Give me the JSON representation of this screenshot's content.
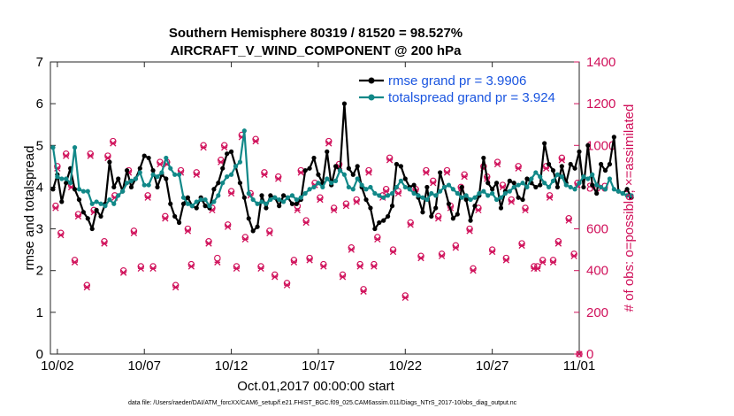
{
  "chart_data": {
    "type": "line",
    "title": "Southern Hemisphere 80319 / 81520 = 98.527%",
    "subtitle": "AIRCRAFT_V_WIND_COMPONENT @ 200 hPa",
    "xlabel": "Oct.01,2017 00:00:00 start",
    "ylabel": "rmse and totalspread",
    "ylabel_right": "# of obs: o=possible; ×=assimilated",
    "ylim": [
      0,
      7
    ],
    "ylim_right": [
      0,
      1400
    ],
    "xlim": [
      0.6,
      31.0
    ],
    "x_ticks": [
      1,
      6,
      11,
      16,
      21,
      26,
      31
    ],
    "x_tick_labels": [
      "10/02",
      "10/07",
      "10/12",
      "10/17",
      "10/22",
      "10/27",
      "11/01"
    ],
    "y_ticks": [
      0,
      1,
      2,
      3,
      4,
      5,
      6,
      7
    ],
    "y_ticks_right": [
      0,
      200,
      400,
      600,
      800,
      1000,
      1200,
      1400
    ],
    "footnote": "data file: /Users/raeder/DAI/ATM_forcXX/CAM6_setup/f.e21.FHIST_BGC.f09_025.CAM6assim.011/Diags_NTrS_2017-10/obs_diag_output.nc",
    "legend": [
      {
        "label": "rmse grand pr = 3.9906",
        "color": "#000000",
        "marker": "dot"
      },
      {
        "label": "totalspread grand pr = 3.924",
        "color": "#118888",
        "marker": "dot"
      }
    ],
    "colors": {
      "rmse": "#000000",
      "spread": "#118888",
      "obs": "#d0105a"
    },
    "series": [
      {
        "name": "rmse",
        "color": "#000000",
        "step": 0.25,
        "x0": 0.75,
        "values": [
          3.95,
          4.3,
          3.65,
          4.1,
          4.45,
          3.95,
          3.7,
          3.4,
          3.25,
          3.0,
          3.45,
          3.3,
          3.6,
          4.6,
          4.0,
          4.2,
          3.9,
          4.4,
          4.0,
          4.2,
          4.45,
          4.75,
          4.7,
          4.4,
          4.0,
          4.3,
          4.2,
          3.6,
          3.3,
          3.15,
          3.6,
          3.75,
          3.55,
          3.5,
          3.75,
          3.55,
          3.5,
          3.95,
          4.1,
          4.45,
          4.8,
          4.85,
          4.5,
          4.1,
          3.75,
          3.25,
          2.95,
          3.05,
          3.8,
          3.5,
          3.8,
          3.75,
          3.55,
          3.8,
          3.75,
          3.6,
          3.6,
          3.7,
          4.4,
          4.45,
          4.7,
          4.3,
          4.1,
          4.85,
          4.05,
          4.5,
          4.4,
          6.0,
          4.45,
          4.3,
          4.5,
          4.0,
          3.7,
          3.5,
          3.0,
          3.15,
          3.2,
          3.3,
          3.55,
          4.55,
          4.5,
          4.2,
          4.0,
          4.05,
          3.75,
          3.4,
          4.0,
          3.3,
          3.5,
          4.35,
          4.0,
          3.6,
          3.25,
          3.35,
          4.0,
          3.7,
          3.2,
          3.55,
          3.8,
          4.7,
          4.1,
          3.95,
          4.1,
          3.5,
          3.9,
          4.15,
          4.1,
          3.75,
          3.7,
          4.2,
          4.1,
          4.0,
          4.05,
          5.05,
          4.55,
          4.4,
          4.0,
          4.5,
          4.1,
          4.55,
          4.45,
          4.85,
          4.0,
          5.0,
          4.05,
          3.85,
          4.55,
          4.4,
          4.55,
          5.2,
          3.9,
          3.85,
          3.95,
          3.75
        ]
      },
      {
        "name": "totalspread",
        "color": "#118888",
        "step": 0.25,
        "x0": 0.75,
        "values": [
          4.95,
          4.25,
          4.2,
          4.2,
          4.1,
          4.95,
          3.95,
          3.9,
          3.9,
          3.6,
          3.65,
          3.6,
          3.55,
          3.7,
          3.6,
          3.8,
          3.9,
          4.1,
          4.15,
          4.2,
          4.35,
          4.05,
          4.05,
          4.3,
          4.25,
          4.35,
          4.7,
          4.45,
          4.3,
          4.3,
          3.75,
          3.6,
          3.55,
          3.65,
          3.7,
          3.7,
          3.55,
          3.65,
          3.8,
          4.1,
          4.25,
          4.3,
          4.5,
          4.6,
          5.35,
          3.85,
          3.7,
          3.6,
          3.65,
          3.6,
          3.7,
          3.75,
          3.7,
          3.65,
          3.75,
          3.8,
          3.7,
          3.75,
          3.85,
          3.95,
          4.0,
          4.1,
          4.0,
          4.2,
          4.1,
          4.15,
          4.4,
          4.3,
          4.0,
          3.95,
          4.2,
          4.05,
          3.95,
          4.0,
          3.85,
          3.8,
          3.75,
          3.8,
          3.85,
          4.0,
          4.15,
          4.0,
          3.95,
          3.85,
          3.8,
          3.75,
          3.7,
          3.85,
          3.8,
          3.9,
          4.0,
          4.05,
          3.95,
          3.85,
          3.75,
          3.8,
          3.7,
          3.75,
          3.85,
          3.9,
          3.8,
          3.85,
          3.7,
          3.75,
          3.85,
          3.9,
          4.0,
          4.05,
          4.1,
          4.0,
          4.2,
          4.35,
          4.25,
          4.1,
          4.0,
          4.15,
          4.3,
          4.25,
          4.05,
          4.0,
          3.95,
          4.1,
          4.25,
          4.2,
          4.3,
          4.05,
          4.0,
          3.95,
          4.2,
          3.95,
          3.9,
          3.85,
          3.8,
          3.8
        ]
      },
      {
        "name": "obs_possible",
        "color": "#d0105a",
        "marker": "o",
        "points": [
          [
            0.9,
            710
          ],
          [
            1.0,
            900
          ],
          [
            1.2,
            580
          ],
          [
            1.5,
            960
          ],
          [
            1.8,
            810
          ],
          [
            2.0,
            450
          ],
          [
            2.2,
            670
          ],
          [
            2.7,
            330
          ],
          [
            2.9,
            960
          ],
          [
            3.1,
            690
          ],
          [
            3.7,
            540
          ],
          [
            3.9,
            950
          ],
          [
            4.2,
            1020
          ],
          [
            4.3,
            760
          ],
          [
            4.8,
            400
          ],
          [
            5.1,
            880
          ],
          [
            5.4,
            590
          ],
          [
            5.8,
            420
          ],
          [
            6.2,
            760
          ],
          [
            6.5,
            420
          ],
          [
            6.9,
            920
          ],
          [
            7.2,
            660
          ],
          [
            7.3,
            920
          ],
          [
            7.8,
            330
          ],
          [
            8.1,
            880
          ],
          [
            8.5,
            600
          ],
          [
            8.7,
            430
          ],
          [
            9.0,
            870
          ],
          [
            9.4,
            1000
          ],
          [
            9.7,
            540
          ],
          [
            9.9,
            700
          ],
          [
            10.2,
            460
          ],
          [
            10.4,
            930
          ],
          [
            10.6,
            1000
          ],
          [
            10.8,
            620
          ],
          [
            11.0,
            780
          ],
          [
            11.3,
            420
          ],
          [
            11.6,
            1050
          ],
          [
            11.8,
            560
          ],
          [
            12.1,
            770
          ],
          [
            12.4,
            1030
          ],
          [
            12.7,
            420
          ],
          [
            12.9,
            870
          ],
          [
            13.2,
            590
          ],
          [
            13.5,
            380
          ],
          [
            13.7,
            850
          ],
          [
            14.2,
            340
          ],
          [
            14.6,
            450
          ],
          [
            14.8,
            710
          ],
          [
            15.0,
            880
          ],
          [
            15.3,
            640
          ],
          [
            15.5,
            460
          ],
          [
            15.8,
            820
          ],
          [
            16.1,
            750
          ],
          [
            16.3,
            430
          ],
          [
            16.6,
            1020
          ],
          [
            16.9,
            700
          ],
          [
            17.2,
            910
          ],
          [
            17.4,
            380
          ],
          [
            17.6,
            720
          ],
          [
            17.9,
            510
          ],
          [
            18.2,
            740
          ],
          [
            18.4,
            430
          ],
          [
            18.6,
            310
          ],
          [
            18.9,
            880
          ],
          [
            19.2,
            430
          ],
          [
            19.4,
            560
          ],
          [
            19.7,
            760
          ],
          [
            19.9,
            790
          ],
          [
            20.1,
            940
          ],
          [
            20.3,
            500
          ],
          [
            20.6,
            780
          ],
          [
            21.0,
            280
          ],
          [
            21.3,
            630
          ],
          [
            21.6,
            790
          ],
          [
            21.9,
            470
          ],
          [
            22.2,
            880
          ],
          [
            22.6,
            830
          ],
          [
            22.9,
            660
          ],
          [
            23.1,
            480
          ],
          [
            23.4,
            880
          ],
          [
            23.6,
            710
          ],
          [
            23.9,
            520
          ],
          [
            24.2,
            800
          ],
          [
            24.4,
            860
          ],
          [
            24.7,
            600
          ],
          [
            24.9,
            410
          ],
          [
            25.2,
            700
          ],
          [
            25.5,
            900
          ],
          [
            25.7,
            850
          ],
          [
            26.0,
            500
          ],
          [
            26.3,
            920
          ],
          [
            26.6,
            810
          ],
          [
            26.8,
            460
          ],
          [
            27.1,
            740
          ],
          [
            27.5,
            900
          ],
          [
            27.7,
            530
          ],
          [
            27.9,
            700
          ],
          [
            28.4,
            420
          ],
          [
            28.6,
            420
          ],
          [
            28.9,
            450
          ],
          [
            29.1,
            900
          ],
          [
            29.3,
            760
          ],
          [
            29.5,
            450
          ],
          [
            29.8,
            540
          ],
          [
            30.0,
            940
          ],
          [
            30.4,
            650
          ],
          [
            30.7,
            480
          ],
          [
            30.9,
            820
          ],
          [
            31.0,
            0
          ]
        ]
      },
      {
        "name": "obs_assimilated",
        "color": "#d0105a",
        "marker": "x",
        "points": [
          [
            0.9,
            700
          ],
          [
            1.0,
            890
          ],
          [
            1.2,
            570
          ],
          [
            1.5,
            950
          ],
          [
            1.8,
            800
          ],
          [
            2.0,
            440
          ],
          [
            2.2,
            660
          ],
          [
            2.7,
            320
          ],
          [
            2.9,
            950
          ],
          [
            3.1,
            680
          ],
          [
            3.7,
            530
          ],
          [
            3.9,
            940
          ],
          [
            4.2,
            1010
          ],
          [
            4.3,
            750
          ],
          [
            4.8,
            390
          ],
          [
            5.1,
            870
          ],
          [
            5.4,
            580
          ],
          [
            5.8,
            410
          ],
          [
            6.2,
            750
          ],
          [
            6.5,
            410
          ],
          [
            6.9,
            910
          ],
          [
            7.2,
            650
          ],
          [
            7.3,
            910
          ],
          [
            7.8,
            320
          ],
          [
            8.1,
            870
          ],
          [
            8.5,
            590
          ],
          [
            8.7,
            420
          ],
          [
            9.0,
            860
          ],
          [
            9.4,
            990
          ],
          [
            9.7,
            530
          ],
          [
            9.9,
            690
          ],
          [
            10.2,
            440
          ],
          [
            10.4,
            920
          ],
          [
            10.6,
            990
          ],
          [
            10.8,
            610
          ],
          [
            11.0,
            770
          ],
          [
            11.3,
            410
          ],
          [
            11.6,
            1040
          ],
          [
            11.8,
            550
          ],
          [
            12.1,
            760
          ],
          [
            12.4,
            1020
          ],
          [
            12.7,
            410
          ],
          [
            12.9,
            860
          ],
          [
            13.2,
            580
          ],
          [
            13.5,
            370
          ],
          [
            13.7,
            840
          ],
          [
            14.2,
            330
          ],
          [
            14.6,
            440
          ],
          [
            14.8,
            690
          ],
          [
            15.0,
            870
          ],
          [
            15.3,
            630
          ],
          [
            15.5,
            450
          ],
          [
            15.8,
            810
          ],
          [
            16.1,
            740
          ],
          [
            16.3,
            420
          ],
          [
            16.6,
            1010
          ],
          [
            16.9,
            690
          ],
          [
            17.2,
            900
          ],
          [
            17.4,
            370
          ],
          [
            17.6,
            710
          ],
          [
            17.9,
            500
          ],
          [
            18.2,
            730
          ],
          [
            18.4,
            420
          ],
          [
            18.6,
            300
          ],
          [
            18.9,
            870
          ],
          [
            19.2,
            420
          ],
          [
            19.4,
            550
          ],
          [
            19.7,
            750
          ],
          [
            19.9,
            780
          ],
          [
            20.1,
            930
          ],
          [
            20.3,
            490
          ],
          [
            20.6,
            770
          ],
          [
            21.0,
            270
          ],
          [
            21.3,
            620
          ],
          [
            21.6,
            780
          ],
          [
            21.9,
            460
          ],
          [
            22.2,
            870
          ],
          [
            22.6,
            820
          ],
          [
            22.9,
            650
          ],
          [
            23.1,
            470
          ],
          [
            23.4,
            870
          ],
          [
            23.6,
            700
          ],
          [
            23.9,
            510
          ],
          [
            24.2,
            790
          ],
          [
            24.4,
            850
          ],
          [
            24.7,
            590
          ],
          [
            24.9,
            400
          ],
          [
            25.2,
            690
          ],
          [
            25.5,
            890
          ],
          [
            25.7,
            840
          ],
          [
            26.0,
            490
          ],
          [
            26.3,
            910
          ],
          [
            26.6,
            800
          ],
          [
            26.8,
            450
          ],
          [
            27.1,
            730
          ],
          [
            27.5,
            890
          ],
          [
            27.7,
            520
          ],
          [
            27.9,
            690
          ],
          [
            28.4,
            410
          ],
          [
            28.6,
            410
          ],
          [
            28.9,
            440
          ],
          [
            29.1,
            890
          ],
          [
            29.3,
            750
          ],
          [
            29.5,
            440
          ],
          [
            29.8,
            530
          ],
          [
            30.0,
            930
          ],
          [
            30.4,
            640
          ],
          [
            30.7,
            470
          ],
          [
            30.9,
            810
          ],
          [
            31.0,
            0
          ]
        ]
      }
    ]
  }
}
